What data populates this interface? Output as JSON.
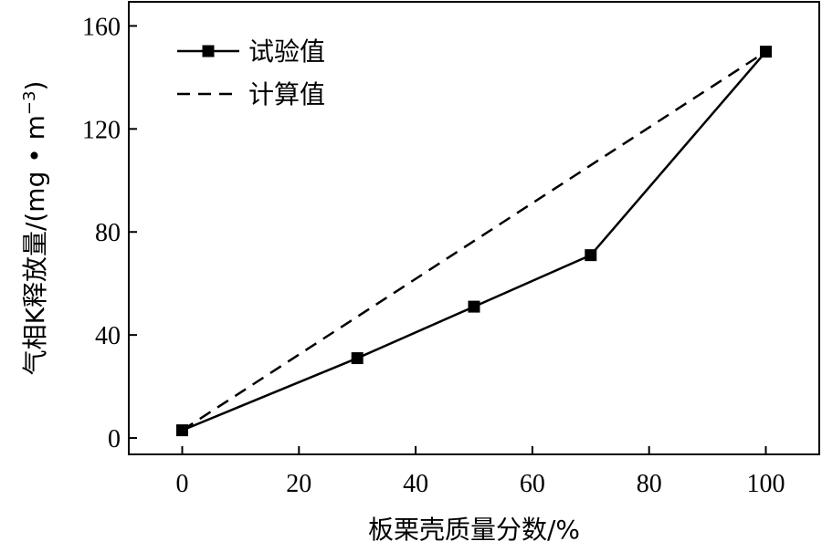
{
  "chart_data": {
    "type": "line",
    "title": "",
    "xlabel": "板栗壳质量分数/%",
    "ylabel": "气相K释放量/(mg • m",
    "ylabel_sup": "−3",
    "ylabel_close": ")",
    "xlim": [
      -9,
      109
    ],
    "ylim": [
      -6,
      169
    ],
    "x_ticks": [
      0,
      20,
      40,
      60,
      80,
      100
    ],
    "y_ticks": [
      0,
      40,
      80,
      120,
      160
    ],
    "x_tick_labels": [
      "0",
      "20",
      "40",
      "60",
      "80",
      "100"
    ],
    "y_tick_labels": [
      "0",
      "40",
      "80",
      "120",
      "160"
    ],
    "grid": false,
    "legend_position": "top-left",
    "series": [
      {
        "name": "试验值",
        "style": "solid-square-markers",
        "color": "#000000",
        "x": [
          0,
          30,
          50,
          70,
          100
        ],
        "y": [
          3,
          31,
          51,
          71,
          150
        ]
      },
      {
        "name": "计算值",
        "style": "dashed",
        "color": "#000000",
        "x": [
          0,
          100
        ],
        "y": [
          3,
          150
        ]
      }
    ]
  }
}
